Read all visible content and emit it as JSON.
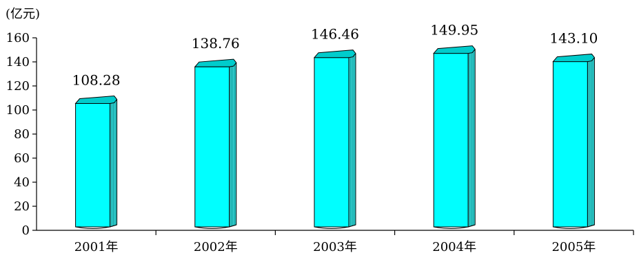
{
  "chart_data": {
    "type": "bar",
    "unit_label": "(亿元)",
    "categories": [
      "2001年",
      "2002年",
      "2003年",
      "2004年",
      "2005年"
    ],
    "values": [
      108.28,
      138.76,
      146.46,
      149.95,
      143.1
    ],
    "data_labels": [
      "108.28",
      "138.76",
      "146.46",
      "149.95",
      "143.10"
    ],
    "ylim": [
      0,
      160
    ],
    "yticks": [
      "0",
      "20",
      "40",
      "60",
      "80",
      "100",
      "120",
      "140",
      "160"
    ],
    "grid": false,
    "legend": "none",
    "bar_style": "3d-cylinder",
    "colors": {
      "bar_front": "#00ffff",
      "bar_side": "#33cccc",
      "bar_top": "#00cccc",
      "outline": "#000000"
    }
  }
}
